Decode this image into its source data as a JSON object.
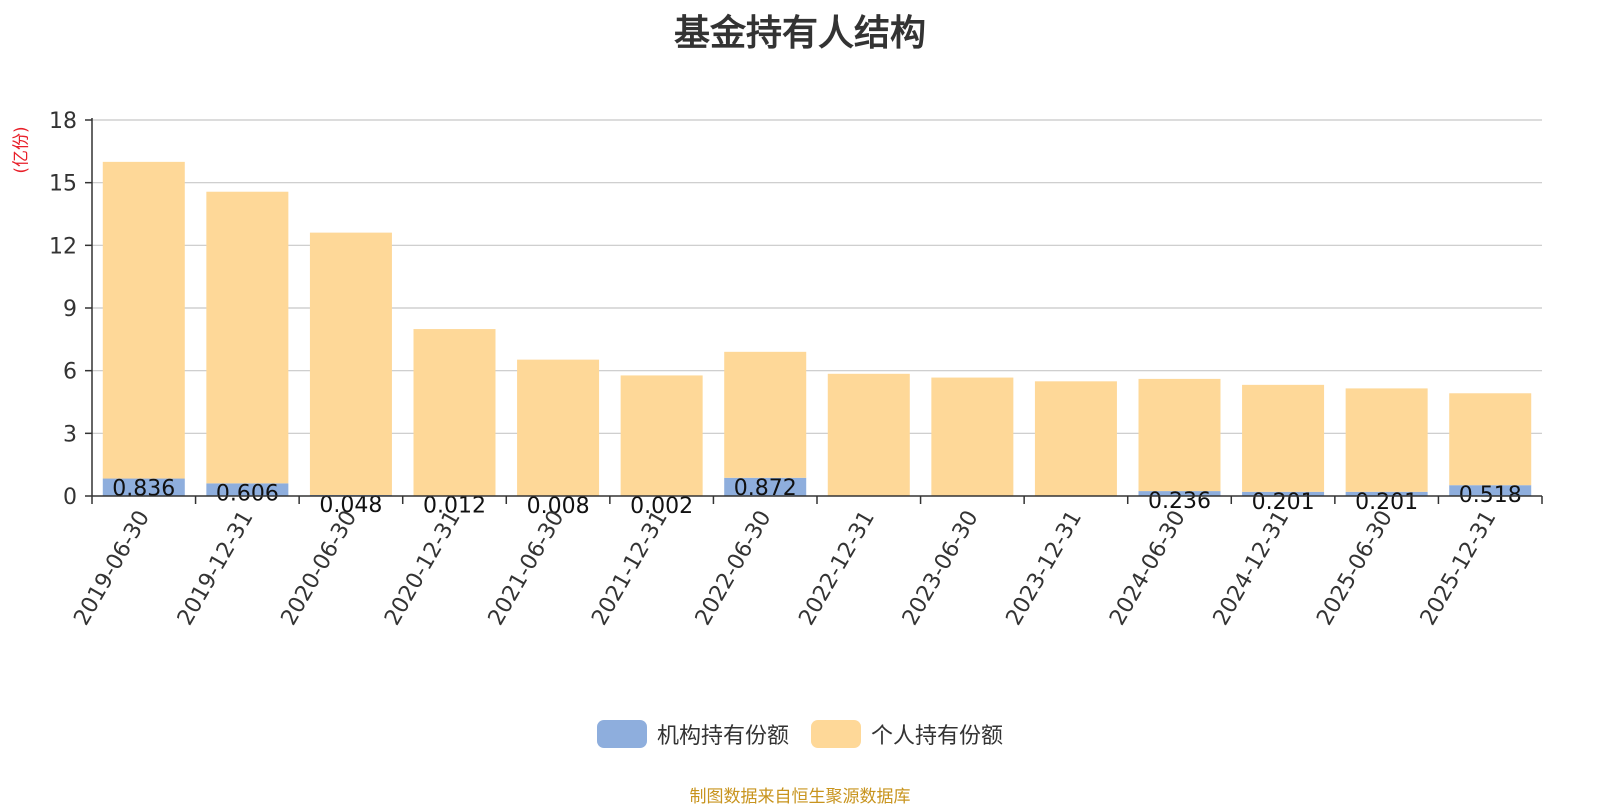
{
  "colors": {
    "institutional": "#8eaedd",
    "individual": "#fed898",
    "grid": "#c8c8c8",
    "axis": "#333333",
    "unit": "#e8202a",
    "source": "#c8941e"
  },
  "legend": {
    "institutional": "机构持有份额",
    "individual": "个人持有份额"
  },
  "source": "制图数据来自恒生聚源数据库",
  "chart_data": {
    "type": "bar",
    "stacked": true,
    "title": "基金持有人结构",
    "ylabel": "(亿份)",
    "xlabel": "",
    "ylim": [
      0,
      18
    ],
    "yticks": [
      0,
      3,
      6,
      9,
      12,
      15,
      18
    ],
    "grid": true,
    "legend_position": "bottom",
    "categories": [
      "2019-06-30",
      "2019-12-31",
      "2020-06-30",
      "2020-12-31",
      "2021-06-30",
      "2021-12-31",
      "2022-06-30",
      "2022-12-31",
      "2023-06-30",
      "2023-12-31",
      "2024-06-30",
      "2024-12-31",
      "2025-06-30",
      "2025-12-31"
    ],
    "series": [
      {
        "name": "机构持有份额",
        "values": [
          0.836,
          0.606,
          0.048,
          0.012,
          0.008,
          0.002,
          0.872,
          0,
          0,
          0,
          0.236,
          0.201,
          0.201,
          0.518
        ],
        "labels": [
          "0.836",
          "0.606",
          "0.048",
          "0.012",
          "0.008",
          "0.002",
          "0.872",
          "",
          "",
          "",
          "0.236",
          "0.201",
          "0.201",
          "0.518"
        ]
      },
      {
        "name": "个人持有份额",
        "values": [
          15.16,
          13.96,
          12.56,
          7.98,
          6.52,
          5.77,
          6.03,
          5.85,
          5.67,
          5.49,
          5.37,
          5.12,
          4.95,
          4.4
        ]
      }
    ]
  }
}
